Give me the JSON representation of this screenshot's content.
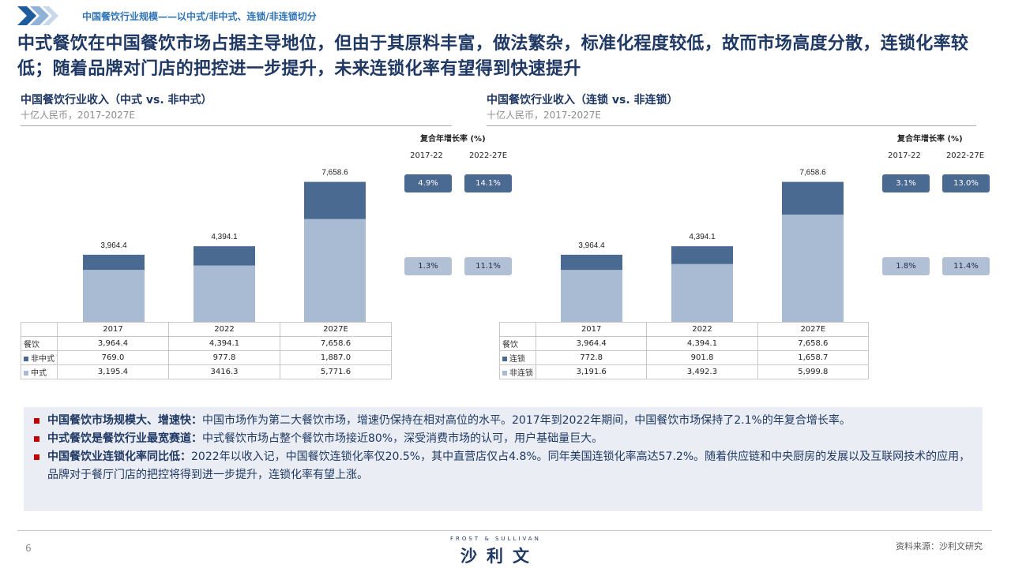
{
  "header": {
    "section_label": "中国餐饮行业规模——以中式/非中式、连锁/非连锁切分",
    "headline": "中式餐饮在中国餐饮市场占据主导地位，但由于其原料丰富，做法繁杂，标准化程度较低，故而市场高度分散，连锁化率较低；随着品牌对门店的把控进一步提升，未来连锁化率有望得到快速提升"
  },
  "colors": {
    "dark_series": "#4a6a92",
    "light_series": "#a9bbd3",
    "accent": "#1f3864",
    "bullet": "#c00000"
  },
  "left_panel": {
    "title": "中国餐饮行业收入（中式 vs. 非中式）",
    "subtitle": "十亿人民币，2017-2027E",
    "cagr_header": "复合年增长率 (%)",
    "cagr_periods": [
      "2017-22",
      "2022-27E"
    ],
    "cagr_rows": [
      {
        "series": "非中式",
        "values": [
          "4.9%",
          "14.1%"
        ]
      },
      {
        "series": "中式",
        "values": [
          "1.3%",
          "11.1%"
        ]
      }
    ],
    "table": {
      "rows": [
        {
          "label": "餐饮",
          "values": [
            "3,964.4",
            "4,394.1",
            "7,658.6"
          ]
        },
        {
          "label": "非中式",
          "values": [
            "769.0",
            "977.8",
            "1,887.0"
          ]
        },
        {
          "label": "中式",
          "values": [
            "3,195.4",
            "3416.3",
            "5,771.6"
          ]
        }
      ]
    }
  },
  "right_panel": {
    "title": "中国餐饮行业收入（连锁 vs. 非连锁）",
    "subtitle": "十亿人民币，2017-2027E",
    "cagr_header": "复合年增长率 (%)",
    "cagr_periods": [
      "2017-22",
      "2022-27E"
    ],
    "cagr_rows": [
      {
        "series": "连锁",
        "values": [
          "3.1%",
          "13.0%"
        ]
      },
      {
        "series": "非连锁",
        "values": [
          "1.8%",
          "11.4%"
        ]
      }
    ],
    "table": {
      "rows": [
        {
          "label": "餐饮",
          "values": [
            "3,964.4",
            "4,394.1",
            "7,658.6"
          ]
        },
        {
          "label": "连锁",
          "values": [
            "772.8",
            "901.8",
            "1,658.7"
          ]
        },
        {
          "label": "非连锁",
          "values": [
            "3,191.6",
            "3,492.3",
            "5,999.8"
          ]
        }
      ]
    }
  },
  "chart_data": [
    {
      "type": "bar",
      "stacked": true,
      "title": "中国餐饮行业收入（中式 vs. 非中式）",
      "subtitle": "十亿人民币，2017-2027E",
      "categories": [
        "2017",
        "2022",
        "2027E"
      ],
      "totals": [
        "3,964.4",
        "4,394.1",
        "7,658.6"
      ],
      "total_values": [
        3964.4,
        4394.1,
        7658.6
      ],
      "series": [
        {
          "name": "中式",
          "values": [
            3195.4,
            3416.3,
            5771.6
          ],
          "color": "#a9bbd3"
        },
        {
          "name": "非中式",
          "values": [
            769.0,
            977.8,
            1887.0
          ],
          "color": "#4a6a92"
        }
      ],
      "ylim": [
        0,
        8000
      ]
    },
    {
      "type": "bar",
      "stacked": true,
      "title": "中国餐饮行业收入（连锁 vs. 非连锁）",
      "subtitle": "十亿人民币，2017-2027E",
      "categories": [
        "2017",
        "2022",
        "2027E"
      ],
      "totals": [
        "3,964.4",
        "4,394.1",
        "7,658.6"
      ],
      "total_values": [
        3964.4,
        4394.1,
        7658.6
      ],
      "series": [
        {
          "name": "非连锁",
          "values": [
            3191.6,
            3492.3,
            5999.8
          ],
          "color": "#a9bbd3"
        },
        {
          "name": "连锁",
          "values": [
            772.8,
            901.8,
            1658.7
          ],
          "color": "#4a6a92"
        }
      ],
      "ylim": [
        0,
        8000
      ]
    }
  ],
  "notes": [
    {
      "lead": "中国餐饮市场规模大、增速快：",
      "body": "中国市场作为第二大餐饮市场，增速仍保持在相对高位的水平。2017年到2022年期间，中国餐饮市场保持了2.1%的年复合增长率。"
    },
    {
      "lead": "中式餐饮是餐饮行业最宽赛道：",
      "body": "中式餐饮市场占整个餐饮市场接近80%，深受消费市场的认可，用户基础量巨大。"
    },
    {
      "lead": "中国餐饮业连锁化率同比低：",
      "body": "2022年以收入记，中国餐饮连锁化率仅20.5%，其中直营店仅占4.8%。同年美国连锁化率高达57.2%。随着供应链和中央厨房的发展以及互联网技术的应用，品牌对于餐厅门店的把控将得到进一步提升，连锁化率有望上涨。"
    }
  ],
  "footer": {
    "page_number": "6",
    "logo_en": "FROST & SULLIVAN",
    "logo_cn": "沙利文",
    "source": "资料来源：沙利文研究"
  }
}
